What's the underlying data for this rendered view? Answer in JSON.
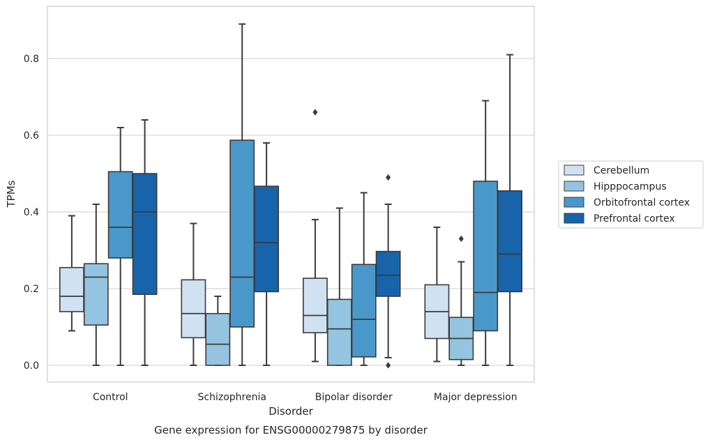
{
  "chart_data": {
    "type": "box",
    "title": "",
    "caption": "Gene expression for ENSG00000279875 by disorder",
    "xlabel": "Disorder",
    "ylabel": "TPMs",
    "ylim": [
      -0.042,
      0.937
    ],
    "yticks": [
      0.0,
      0.2,
      0.4,
      0.6,
      0.8
    ],
    "ytick_labels": [
      "0.0",
      "0.2",
      "0.4",
      "0.6",
      "0.8"
    ],
    "grid": "horizontal",
    "legend_position": "right",
    "categories": [
      "Control",
      "Schizophrenia",
      "Bipolar disorder",
      "Major depression"
    ],
    "series": [
      {
        "name": "Cerebellum",
        "color": "#d0e1f2",
        "boxes": [
          {
            "whislo": 0.09,
            "q1": 0.14,
            "med": 0.18,
            "q3": 0.255,
            "whishi": 0.39,
            "fliers": []
          },
          {
            "whislo": 0.0,
            "q1": 0.072,
            "med": 0.135,
            "q3": 0.223,
            "whishi": 0.37,
            "fliers": []
          },
          {
            "whislo": 0.01,
            "q1": 0.085,
            "med": 0.13,
            "q3": 0.227,
            "whishi": 0.38,
            "fliers": [
              0.66
            ]
          },
          {
            "whislo": 0.01,
            "q1": 0.07,
            "med": 0.14,
            "q3": 0.21,
            "whishi": 0.36,
            "fliers": []
          }
        ]
      },
      {
        "name": "Hipppocampus",
        "color": "#94c4df",
        "boxes": [
          {
            "whislo": 0.0,
            "q1": 0.105,
            "med": 0.23,
            "q3": 0.265,
            "whishi": 0.42,
            "fliers": []
          },
          {
            "whislo": 0.0,
            "q1": 0.0,
            "med": 0.055,
            "q3": 0.135,
            "whishi": 0.18,
            "fliers": []
          },
          {
            "whislo": 0.0,
            "q1": 0.0,
            "med": 0.095,
            "q3": 0.172,
            "whishi": 0.41,
            "fliers": []
          },
          {
            "whislo": 0.0,
            "q1": 0.015,
            "med": 0.07,
            "q3": 0.125,
            "whishi": 0.27,
            "fliers": [
              0.33
            ]
          }
        ]
      },
      {
        "name": "Orbitofrontal cortex",
        "color": "#4a98c9",
        "boxes": [
          {
            "whislo": 0.0,
            "q1": 0.28,
            "med": 0.36,
            "q3": 0.505,
            "whishi": 0.62,
            "fliers": []
          },
          {
            "whislo": 0.0,
            "q1": 0.1,
            "med": 0.23,
            "q3": 0.587,
            "whishi": 0.89,
            "fliers": []
          },
          {
            "whislo": 0.0,
            "q1": 0.022,
            "med": 0.12,
            "q3": 0.263,
            "whishi": 0.45,
            "fliers": []
          },
          {
            "whislo": 0.0,
            "q1": 0.09,
            "med": 0.19,
            "q3": 0.48,
            "whishi": 0.69,
            "fliers": []
          }
        ]
      },
      {
        "name": "Prefrontal cortex",
        "color": "#1764ab",
        "boxes": [
          {
            "whislo": 0.0,
            "q1": 0.185,
            "med": 0.4,
            "q3": 0.5,
            "whishi": 0.64,
            "fliers": []
          },
          {
            "whislo": 0.0,
            "q1": 0.192,
            "med": 0.32,
            "q3": 0.467,
            "whishi": 0.58,
            "fliers": []
          },
          {
            "whislo": 0.02,
            "q1": 0.18,
            "med": 0.235,
            "q3": 0.297,
            "whishi": 0.42,
            "fliers": [
              0.0,
              0.49
            ]
          },
          {
            "whislo": 0.0,
            "q1": 0.192,
            "med": 0.29,
            "q3": 0.455,
            "whishi": 0.81,
            "fliers": []
          }
        ]
      }
    ]
  }
}
